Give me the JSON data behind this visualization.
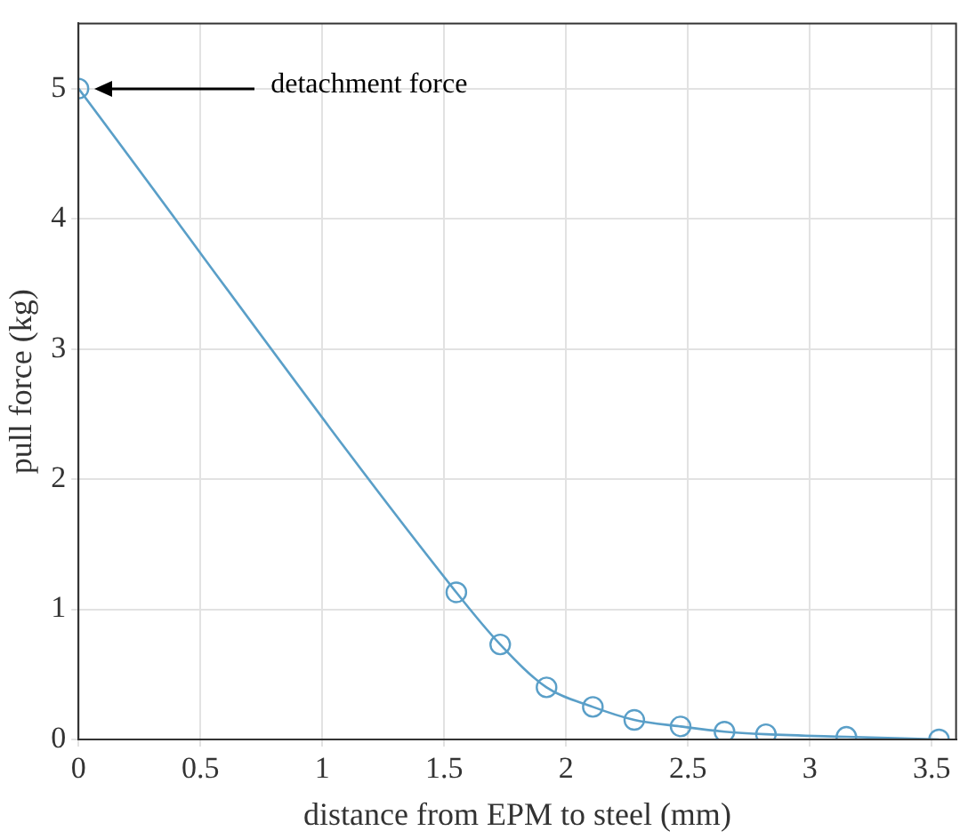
{
  "chart_data": {
    "type": "line",
    "xlabel": "distance from EPM to steel (mm)",
    "ylabel": "pull force (kg)",
    "x": [
      0,
      1.55,
      1.73,
      1.92,
      2.11,
      2.28,
      2.47,
      2.65,
      2.82,
      3.15,
      3.53
    ],
    "series": [
      {
        "color": "#5a9fc8",
        "values": [
          5,
          1.13,
          0.73,
          0.4,
          0.25,
          0.15,
          0.1,
          0.06,
          0.04,
          0.02,
          0
        ]
      }
    ],
    "xlim": [
      0,
      3.6
    ],
    "xticks": [
      0,
      0.5,
      1,
      1.5,
      2,
      2.5,
      3,
      3.5
    ],
    "ylim": [
      0,
      5.5
    ],
    "yticks": [
      0,
      1,
      2,
      3,
      4,
      5
    ],
    "grid": true,
    "legend": false,
    "marker": "circle",
    "line_style": "solid",
    "annotations": [
      "detachment force"
    ]
  }
}
